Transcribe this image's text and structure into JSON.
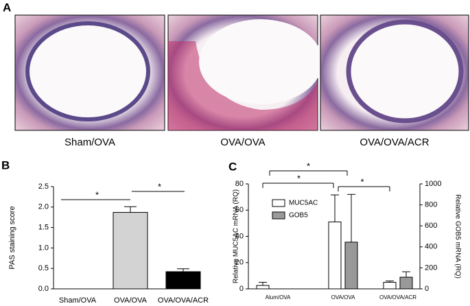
{
  "panel_a": {
    "label": "A",
    "images": [
      "Sham/OVA",
      "OVA/OVA",
      "OVA/OVA/ACR"
    ]
  },
  "chart_data": [
    {
      "type": "bar",
      "label": "B",
      "y_label": "PAS staining score",
      "categories": [
        "Sham/OVA",
        "OVA/OVA",
        "OVA/OVA/ACR"
      ],
      "values": [
        0,
        1.87,
        0.42
      ],
      "errors": [
        0,
        0.14,
        0.07
      ],
      "colors": [
        "#ffffff",
        "#d3d3d3",
        "#000000"
      ],
      "ylim": [
        0,
        2.5
      ],
      "yticks": [
        {
          "value": 0,
          "label": "0.0"
        },
        {
          "value": 0.5,
          "label": "0.5"
        },
        {
          "value": 1,
          "label": "1.0"
        },
        {
          "value": 1.5,
          "label": "1.5"
        },
        {
          "value": 2,
          "label": "2.0"
        },
        {
          "value": 2.5,
          "label": "2.5"
        }
      ],
      "annotations": [
        "*",
        "*"
      ]
    },
    {
      "type": "grouped-bar",
      "label": "C",
      "y_label": "Relative MUC5AC mRNA (RQ)",
      "y2_label": "Relative GOB5 mRNA (RQ)",
      "categories": [
        "Alum/OVA",
        "OVA/OVA",
        "OVA/OVA/ACR"
      ],
      "series": [
        {
          "name": "MUC5AC",
          "color": "#ffffff",
          "values": [
            2.6,
            51,
            5
          ],
          "errors": [
            2.4,
            20.6,
            1
          ]
        },
        {
          "name": "GOB5",
          "color": "#999999",
          "axis": "y2",
          "values": [
            0,
            445,
            111
          ],
          "errors": [
            0,
            455,
            52
          ]
        }
      ],
      "ylim": [
        0,
        80
      ],
      "yticks": [
        0,
        20,
        40,
        60,
        80
      ],
      "y2lim": [
        0,
        1000
      ],
      "y2ticks": [
        0,
        200,
        400,
        600,
        800,
        1000
      ],
      "legend": "upper-left",
      "annotations": [
        "*",
        "*",
        "*"
      ]
    }
  ]
}
